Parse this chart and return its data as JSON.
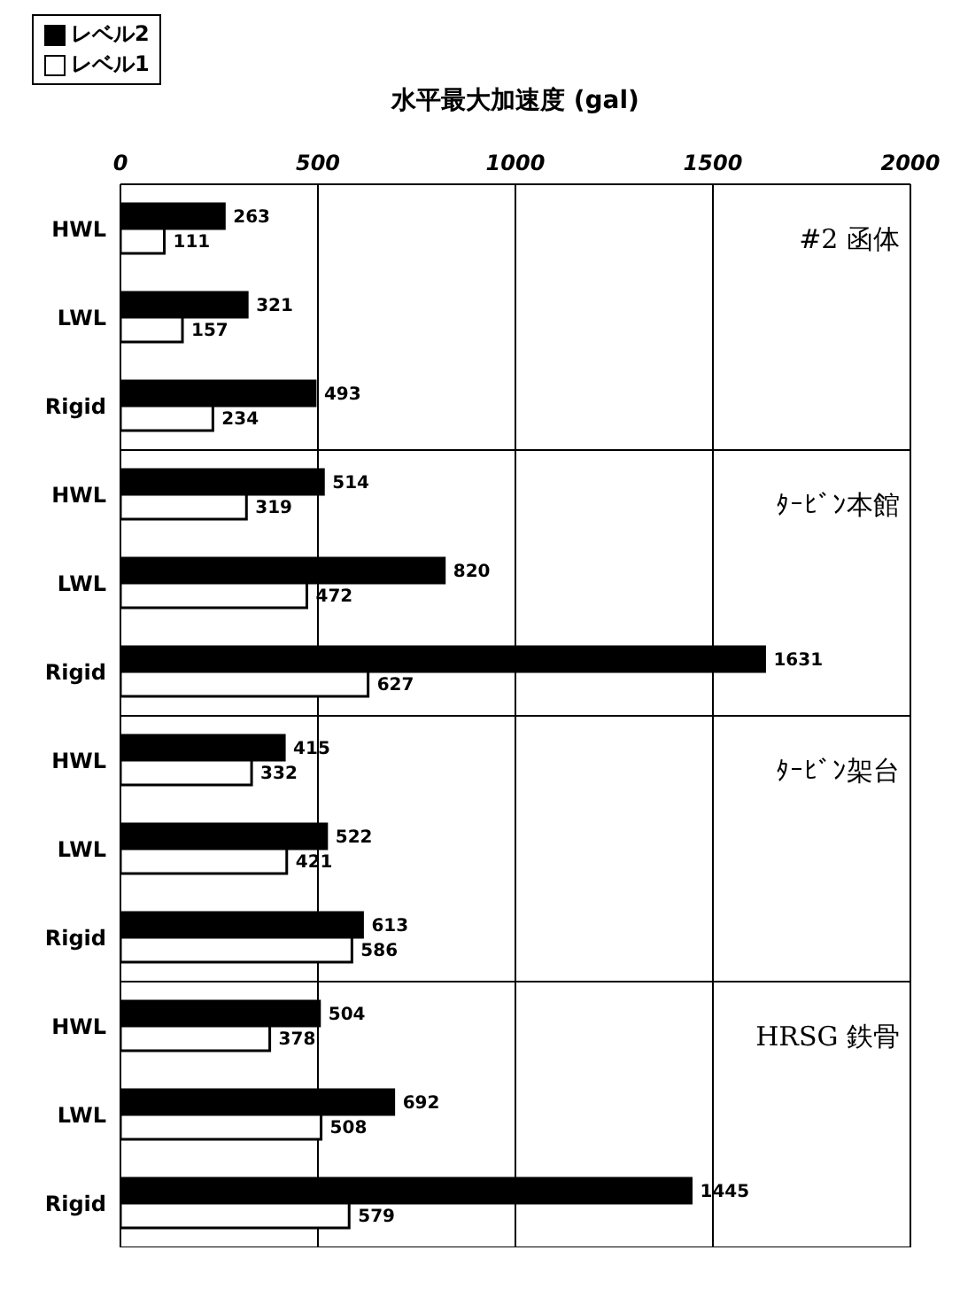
{
  "chart_data": [
    {
      "type": "bar",
      "orientation": "horizontal",
      "xlabel": "水平最大加速度 (gal)",
      "categories": [
        "HWL",
        "LWL",
        "Rigid"
      ],
      "xlim": [
        0,
        2000
      ],
      "xticks": [
        0,
        500,
        1000,
        1500,
        2000
      ],
      "grid": "x",
      "legend": "top left",
      "data_labels": true,
      "annotations": [
        "#2 函体"
      ],
      "series": [
        {
          "name": "レベル2",
          "color": "#000000",
          "values": [
            263,
            321,
            493
          ]
        },
        {
          "name": "レベル1",
          "color": "#ffffff",
          "values": [
            111,
            157,
            234
          ]
        }
      ]
    },
    {
      "type": "bar",
      "orientation": "horizontal",
      "categories": [
        "HWL",
        "LWL",
        "Rigid"
      ],
      "xlim": [
        0,
        2000
      ],
      "xticks": [
        0,
        500,
        1000,
        1500,
        2000
      ],
      "grid": "x",
      "tick_labels": "y",
      "data_labels": true,
      "annotations": [
        "ﾀｰﾋﾞﾝ本館"
      ],
      "series": [
        {
          "color": "#000000",
          "values": [
            514,
            820,
            1631
          ]
        },
        {
          "color": "#ffffff",
          "values": [
            319,
            472,
            627
          ]
        }
      ]
    },
    {
      "type": "bar",
      "orientation": "horizontal",
      "categories": [
        "HWL",
        "LWL",
        "Rigid"
      ],
      "xlim": [
        0,
        2000
      ],
      "xticks": [
        0,
        500,
        1000,
        1500,
        2000
      ],
      "grid": "x",
      "tick_labels": "y",
      "data_labels": true,
      "annotations": [
        "ﾀｰﾋﾞﾝ架台"
      ],
      "series": [
        {
          "color": "#000000",
          "values": [
            415,
            522,
            613
          ]
        },
        {
          "color": "#ffffff",
          "values": [
            332,
            421,
            586
          ]
        }
      ]
    },
    {
      "type": "bar",
      "orientation": "horizontal",
      "categories": [
        "HWL",
        "LWL",
        "Rigid"
      ],
      "xlim": [
        0,
        2000
      ],
      "xticks": [
        0,
        500,
        1000,
        1500,
        2000
      ],
      "grid": "x",
      "tick_labels": "y",
      "data_labels": true,
      "annotations": [
        "HRSG 鉄骨"
      ],
      "series": [
        {
          "color": "#000000",
          "values": [
            504,
            692,
            1445
          ]
        },
        {
          "color": "#ffffff",
          "values": [
            378,
            508,
            579
          ]
        }
      ]
    }
  ]
}
